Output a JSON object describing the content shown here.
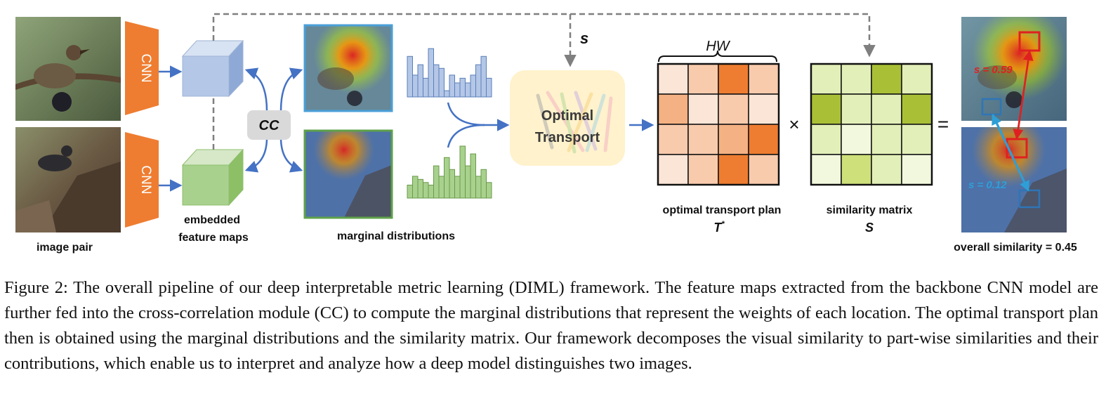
{
  "diagram": {
    "cnn_label": "CNN",
    "cc_label": "CC",
    "s_label": "s",
    "ot_label_line1": "Optimal",
    "ot_label_line2": "Transport",
    "hw_label": "HW",
    "times_symbol": "×",
    "equals_symbol": "=",
    "labels": {
      "image_pair": "image pair",
      "embedded_line1": "embedded",
      "embedded_line2": "feature maps",
      "marginal": "marginal distributions",
      "ot_plan": "optimal transport plan",
      "ot_plan_symbol": "T",
      "ot_plan_superscript": "*",
      "similarity_matrix": "similarity matrix",
      "similarity_symbol": "S",
      "overall": "overall similarity = 0.45"
    },
    "annotations": {
      "s_high": "s = 0.59",
      "s_low": "s = 0.12"
    },
    "colors": {
      "cnn": "#ee7d31",
      "arrow": "#4472c4",
      "dashed": "#7f7f7f",
      "blue_cube": "#b4c7e7",
      "green_cube": "#a9d18e",
      "ot_box": "#fff2cc",
      "cc_box": "#d9d9d9",
      "red_box": "#e02020",
      "blue_box": "#2e75b6"
    },
    "ot_plan_grid": [
      [
        "#fbe5d6",
        "#f8cbad",
        "#ee7d31",
        "#f8cbad"
      ],
      [
        "#f4b183",
        "#fbe5d6",
        "#f8cbad",
        "#fbe5d6"
      ],
      [
        "#f8cbad",
        "#f8cbad",
        "#f4b183",
        "#ee7d31"
      ],
      [
        "#fbe5d6",
        "#f8cbad",
        "#ee7d31",
        "#f8cbad"
      ]
    ],
    "similarity_grid": [
      [
        "#e2efb8",
        "#e2efb8",
        "#a9c036",
        "#e2efb8"
      ],
      [
        "#a9c036",
        "#e2efb8",
        "#e2efb8",
        "#a9c036"
      ],
      [
        "#e2efb8",
        "#f2f8dd",
        "#e2efb8",
        "#e2efb8"
      ],
      [
        "#f2f8dd",
        "#cde07a",
        "#e2efb8",
        "#f2f8dd"
      ]
    ],
    "marginal_top": [
      0.78,
      0.42,
      0.62,
      0.36,
      0.93,
      0.62,
      0.55,
      0.12,
      0.42,
      0.27,
      0.36,
      0.27,
      0.42,
      0.62,
      0.78,
      0.36
    ],
    "marginal_bottom": [
      0.25,
      0.42,
      0.36,
      0.3,
      0.25,
      0.62,
      0.42,
      0.78,
      0.55,
      0.42,
      1.0,
      0.62,
      0.85,
      0.42,
      0.55,
      0.3
    ]
  },
  "caption": [
    "Figure 2: The overall pipeline of our deep interpretable metric learning (DIML) framework. The feature maps extracted from",
    "the backbone CNN model are further fed into the cross-correlation module (CC) to compute the marginal distributions that",
    "represent the weights of each location. The optimal transport plan then is obtained using the marginal distributions and the",
    "similarity matrix. Our framework decomposes the visual similarity to part-wise similarities and their contributions, which",
    "enable us to interpret and analyze how a deep model distinguishes two images."
  ]
}
